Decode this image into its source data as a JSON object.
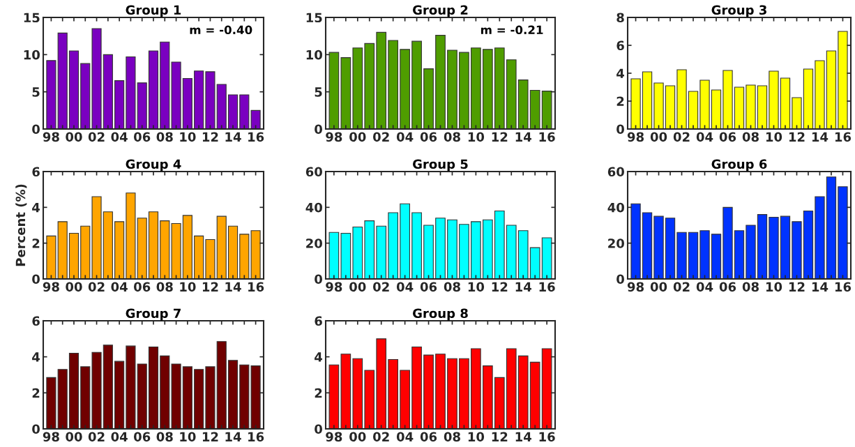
{
  "chart_data": [
    {
      "type": "bar",
      "title": "Group 1",
      "categories": [
        "98",
        null,
        "00",
        null,
        "02",
        null,
        "04",
        null,
        "06",
        null,
        "08",
        null,
        "10",
        null,
        "12",
        null,
        "14",
        null,
        "16"
      ],
      "values": [
        9.2,
        12.9,
        10.5,
        8.8,
        13.5,
        10.0,
        6.5,
        9.7,
        6.2,
        10.5,
        11.7,
        9.0,
        6.8,
        7.8,
        7.7,
        6.0,
        4.6,
        4.6,
        2.5
      ],
      "color": "#7a00c0",
      "ylim": [
        0,
        15
      ],
      "yticks": [
        0,
        5,
        10,
        15
      ],
      "annotations": [
        "m = -0.40"
      ]
    },
    {
      "type": "bar",
      "title": "Group 2",
      "categories": [
        "98",
        null,
        "00",
        null,
        "02",
        null,
        "04",
        null,
        "06",
        null,
        "08",
        null,
        "10",
        null,
        "12",
        null,
        "14",
        null,
        "16"
      ],
      "values": [
        10.3,
        9.6,
        10.9,
        11.5,
        13.0,
        11.9,
        10.7,
        11.8,
        8.1,
        12.6,
        10.6,
        10.3,
        10.9,
        10.7,
        10.9,
        9.3,
        6.6,
        5.2,
        5.1
      ],
      "color": "#4f9d00",
      "ylim": [
        0,
        15
      ],
      "yticks": [
        0,
        5,
        10,
        15
      ],
      "annotations": [
        "m = -0.21"
      ]
    },
    {
      "type": "bar",
      "title": "Group 3",
      "categories": [
        "98",
        null,
        "00",
        null,
        "02",
        null,
        "04",
        null,
        "06",
        null,
        "08",
        null,
        "10",
        null,
        "12",
        null,
        "14",
        null,
        "16"
      ],
      "values": [
        3.6,
        4.1,
        3.3,
        3.1,
        4.25,
        2.7,
        3.5,
        2.8,
        4.2,
        3.0,
        3.15,
        3.1,
        4.15,
        3.65,
        2.25,
        4.3,
        4.9,
        5.6,
        7.0
      ],
      "color": "#ffff00",
      "ylim": [
        0,
        8
      ],
      "yticks": [
        0,
        2,
        4,
        6,
        8
      ]
    },
    {
      "type": "bar",
      "title": "Group 4",
      "ylabel": "Percent (%)",
      "categories": [
        "98",
        null,
        "00",
        null,
        "02",
        null,
        "04",
        null,
        "06",
        null,
        "08",
        null,
        "10",
        null,
        "12",
        null,
        "14",
        null,
        "16"
      ],
      "values": [
        2.4,
        3.2,
        2.55,
        2.95,
        4.6,
        3.75,
        3.2,
        4.8,
        3.4,
        3.75,
        3.25,
        3.1,
        3.55,
        2.4,
        2.2,
        3.5,
        2.95,
        2.5,
        2.7
      ],
      "color": "#ffa500",
      "ylim": [
        0,
        6
      ],
      "yticks": [
        0,
        2,
        4,
        6
      ]
    },
    {
      "type": "bar",
      "title": "Group 5",
      "categories": [
        "98",
        null,
        "00",
        null,
        "02",
        null,
        "04",
        null,
        "06",
        null,
        "08",
        null,
        "10",
        null,
        "12",
        null,
        "14",
        null,
        "16"
      ],
      "values": [
        26,
        25.5,
        29,
        32.5,
        29.5,
        37,
        42,
        37,
        30,
        34,
        33,
        30.5,
        32,
        33,
        38,
        30,
        27,
        17.5,
        23
      ],
      "color": "#00ffff",
      "ylim": [
        0,
        60
      ],
      "yticks": [
        0,
        20,
        40,
        60
      ]
    },
    {
      "type": "bar",
      "title": "Group 6",
      "categories": [
        "98",
        null,
        "00",
        null,
        "02",
        null,
        "04",
        null,
        "06",
        null,
        "08",
        null,
        "10",
        null,
        "12",
        null,
        "14",
        null,
        "16"
      ],
      "values": [
        42,
        37,
        35,
        34,
        26,
        26,
        27,
        25,
        40,
        27,
        30,
        36,
        34.5,
        35,
        32,
        38,
        46,
        57,
        51.5
      ],
      "color": "#0033ff",
      "ylim": [
        0,
        60
      ],
      "yticks": [
        0,
        20,
        40,
        60
      ]
    },
    {
      "type": "bar",
      "title": "Group 7",
      "categories": [
        "98",
        null,
        "00",
        null,
        "02",
        null,
        "04",
        null,
        "06",
        null,
        "08",
        null,
        "10",
        null,
        "12",
        null,
        "14",
        null,
        "16"
      ],
      "values": [
        2.85,
        3.3,
        4.2,
        3.45,
        4.25,
        4.65,
        3.75,
        4.6,
        3.6,
        4.55,
        4.05,
        3.6,
        3.45,
        3.3,
        3.45,
        4.85,
        3.8,
        3.55,
        3.5
      ],
      "color": "#700000",
      "ylim": [
        0,
        6
      ],
      "yticks": [
        0,
        2,
        4,
        6
      ]
    },
    {
      "type": "bar",
      "title": "Group 8",
      "categories": [
        "98",
        null,
        "00",
        null,
        "02",
        null,
        "04",
        null,
        "06",
        null,
        "08",
        null,
        "10",
        null,
        "12",
        null,
        "14",
        null,
        "16"
      ],
      "values": [
        3.55,
        4.15,
        3.9,
        3.25,
        5.0,
        3.85,
        3.25,
        4.55,
        4.1,
        4.15,
        3.9,
        3.9,
        4.45,
        3.5,
        2.85,
        4.45,
        4.05,
        3.7,
        4.45
      ],
      "color": "#ff0000",
      "ylim": [
        0,
        6
      ],
      "yticks": [
        0,
        2,
        4,
        6
      ]
    }
  ]
}
